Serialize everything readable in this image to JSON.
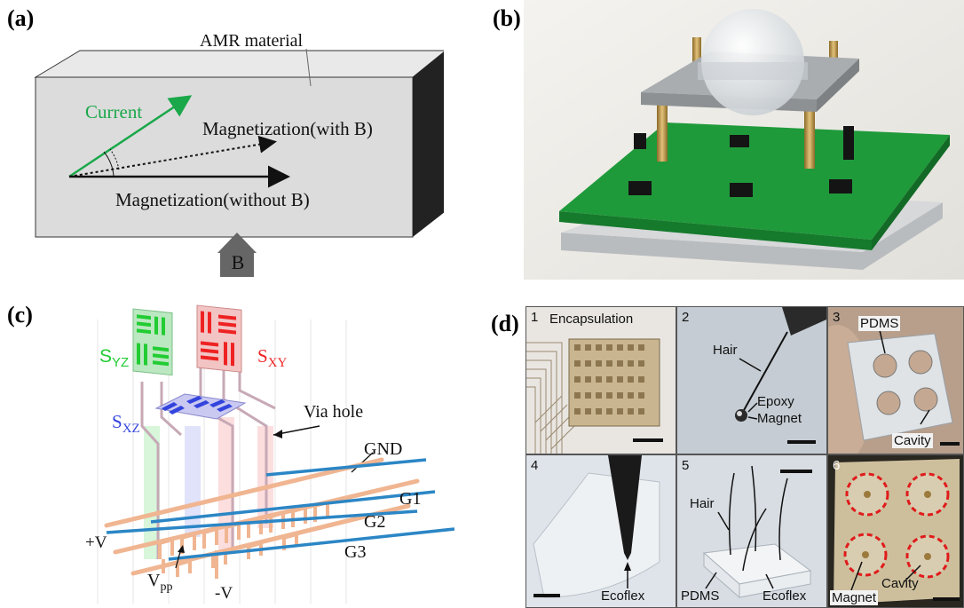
{
  "panels": {
    "a": {
      "label": "(a)",
      "material": "AMR material",
      "current": "Current",
      "mag_with_b": "Magnetization(with B)",
      "mag_without_b": "Magnetization(without B)",
      "field": "B"
    },
    "b": {
      "label": "(b)"
    },
    "c": {
      "label": "(c)",
      "s_yz_main": "S",
      "s_yz_sub": "YZ",
      "s_xy_main": "S",
      "s_xy_sub": "XY",
      "s_xz_main": "S",
      "s_xz_sub": "XZ",
      "via_hole": "Via hole",
      "gnd": "GND",
      "g1": "G1",
      "g2": "G2",
      "g3": "G3",
      "plus_v": "+V",
      "minus_v": "-V",
      "vpp_main": "V",
      "vpp_sub": "pp"
    },
    "d": {
      "label": "(d)",
      "tiles": [
        {
          "num": "1",
          "labels": [
            "Encapsulation"
          ]
        },
        {
          "num": "2",
          "labels": [
            "Hair",
            "Epoxy",
            "Magnet"
          ]
        },
        {
          "num": "3",
          "labels": [
            "PDMS",
            "Cavity"
          ]
        },
        {
          "num": "4",
          "labels": [
            "Ecoflex"
          ]
        },
        {
          "num": "5",
          "labels": [
            "Hair",
            "PDMS",
            "Ecoflex"
          ]
        },
        {
          "num": "6",
          "labels": [
            "Magnet",
            "Cavity"
          ]
        }
      ]
    }
  },
  "colors": {
    "current": "#1aa84a",
    "s_yz": "#22cc33",
    "s_xy": "#ee2222",
    "s_xz": "#3344dd",
    "bus": "#2b86c5",
    "trace": "#f0b591",
    "pcb": "#1f9a3a"
  }
}
